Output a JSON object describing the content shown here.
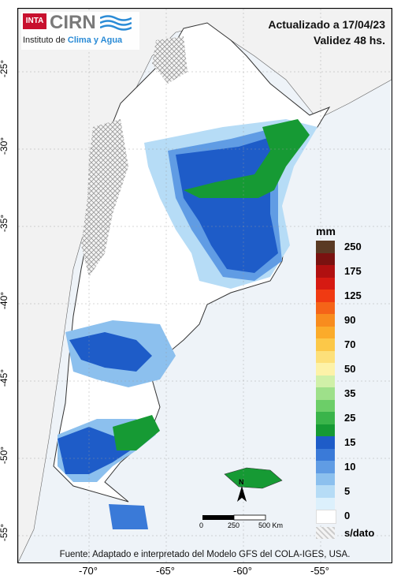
{
  "header": {
    "update_line": "Actualizado a 17/04/23",
    "validity_line": "Validez 48 hs."
  },
  "logo": {
    "inta": "INTA",
    "cirn": "CIRN",
    "subtitle_prefix": "Instituto de ",
    "subtitle_highlight": "Clima y Agua"
  },
  "legend": {
    "unit": "mm",
    "classes": [
      {
        "label": "250",
        "color": "#5a3a24"
      },
      {
        "label": "",
        "color": "#7a1210"
      },
      {
        "label": "175",
        "color": "#b01010"
      },
      {
        "label": "",
        "color": "#d61a12"
      },
      {
        "label": "125",
        "color": "#f03a12"
      },
      {
        "label": "",
        "color": "#f56418"
      },
      {
        "label": "90",
        "color": "#f88c1e"
      },
      {
        "label": "",
        "color": "#fbab2a"
      },
      {
        "label": "70",
        "color": "#fcc848"
      },
      {
        "label": "",
        "color": "#fde07a"
      },
      {
        "label": "50",
        "color": "#fdf2a8"
      },
      {
        "label": "",
        "color": "#d0f0a8"
      },
      {
        "label": "35",
        "color": "#9ee08a"
      },
      {
        "label": "",
        "color": "#6cce68"
      },
      {
        "label": "25",
        "color": "#3ab44a"
      },
      {
        "label": "",
        "color": "#169a34"
      },
      {
        "label": "15",
        "color": "#1e5cc8"
      },
      {
        "label": "",
        "color": "#3a7ad8"
      },
      {
        "label": "10",
        "color": "#609ce4"
      },
      {
        "label": "",
        "color": "#8cc0ee"
      },
      {
        "label": "5",
        "color": "#b6dcf6"
      },
      {
        "label": "",
        "color": "#dcf0fc"
      },
      {
        "label": "0",
        "color": "#ffffff"
      }
    ],
    "nodata_label": "s/dato"
  },
  "scale_bar": {
    "labels": [
      "0",
      "250",
      "500 Km"
    ],
    "north": "N"
  },
  "axes": {
    "latitudes": [
      "-25°",
      "-30°",
      "-35°",
      "-40°",
      "-45°",
      "-50°",
      "-55°"
    ],
    "longitudes": [
      "-70°",
      "-65°",
      "-60°",
      "-55°"
    ]
  },
  "source": "Fuente: Adaptado e interpretado del Modelo GFS del COLA-IGES, USA.",
  "colors": {
    "ocean": "#eef3f8",
    "land_outside": "#f2f2f2",
    "land_argentina": "#ffffff",
    "border": "#333333"
  }
}
